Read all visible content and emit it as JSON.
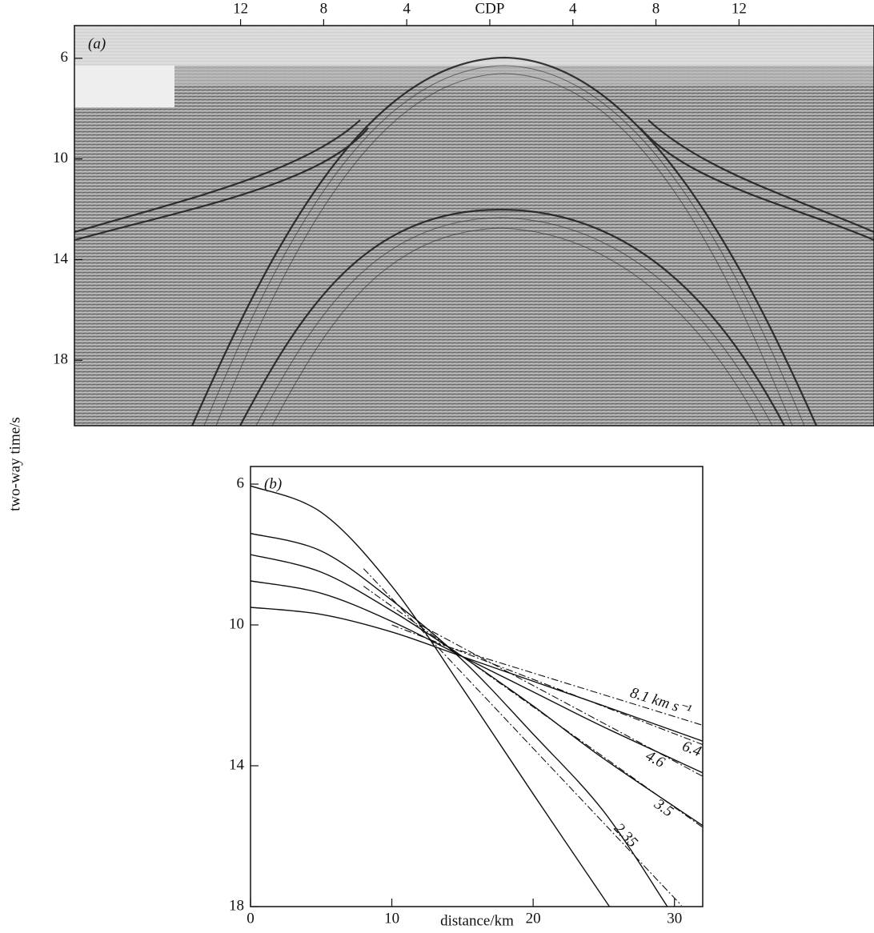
{
  "y_axis_label": "two-way time/s",
  "chart_data": [
    {
      "type": "seismic-section",
      "panel_label": "(a)",
      "xlim": [
        -20,
        18.5
      ],
      "ylim": [
        4.7,
        20.6
      ],
      "xticks": [
        {
          "value": -12,
          "label": "12"
        },
        {
          "value": -8,
          "label": "8"
        },
        {
          "value": -4,
          "label": "4"
        },
        {
          "value": 0,
          "label": "CDP"
        },
        {
          "value": 4,
          "label": "4"
        },
        {
          "value": 8,
          "label": "8"
        },
        {
          "value": 12,
          "label": "12"
        }
      ],
      "yticks": [
        6,
        10,
        14,
        18
      ]
    },
    {
      "type": "line",
      "panel_label": "(b)",
      "x_label": "distance/km",
      "xlim": [
        0,
        32
      ],
      "ylim": [
        5.5,
        18
      ],
      "xticks": [
        0,
        10,
        20,
        30
      ],
      "yticks": [
        6,
        10,
        14,
        18
      ],
      "series": [
        {
          "color": "#111111",
          "style": "solid",
          "x": [
            0,
            5,
            10,
            15,
            20,
            25.4
          ],
          "values": [
            6.05,
            6.8,
            8.9,
            11.8,
            14.8,
            18
          ]
        },
        {
          "color": "#111111",
          "style": "solid",
          "x": [
            0,
            5,
            10,
            15,
            20,
            25,
            29.5
          ],
          "values": [
            7.4,
            7.9,
            9.3,
            11.0,
            13.1,
            15.3,
            18
          ]
        },
        {
          "color": "#111111",
          "style": "solid",
          "x": [
            0,
            5,
            10,
            15,
            20,
            25,
            32
          ],
          "values": [
            8.0,
            8.5,
            9.6,
            10.9,
            12.3,
            13.8,
            15.7
          ]
        },
        {
          "color": "#111111",
          "style": "solid",
          "x": [
            0,
            5,
            10,
            15,
            20,
            25,
            32
          ],
          "values": [
            8.75,
            9.1,
            9.9,
            10.9,
            11.9,
            12.9,
            14.2
          ]
        },
        {
          "color": "#111111",
          "style": "solid",
          "x": [
            0,
            5,
            10,
            15,
            20,
            25,
            32
          ],
          "values": [
            9.5,
            9.7,
            10.2,
            10.9,
            11.6,
            12.3,
            13.3
          ]
        },
        {
          "name": "8.1 km s⁻¹",
          "color": "#111111",
          "style": "dashdot",
          "x": [
            13,
            32
          ],
          "values": [
            10.5,
            12.85
          ]
        },
        {
          "name": "6.4",
          "color": "#111111",
          "style": "dashdot",
          "x": [
            10,
            32
          ],
          "values": [
            10.0,
            13.4
          ]
        },
        {
          "name": "4.6",
          "color": "#111111",
          "style": "dashdot",
          "x": [
            12,
            32
          ],
          "values": [
            10.0,
            14.3
          ]
        },
        {
          "name": "3.5",
          "color": "#111111",
          "style": "dashdot",
          "x": [
            8,
            32
          ],
          "values": [
            8.9,
            15.75
          ]
        },
        {
          "name": "2.35",
          "color": "#111111",
          "style": "dashdot",
          "x": [
            8,
            30.5
          ],
          "values": [
            8.4,
            17.97
          ]
        }
      ]
    }
  ]
}
